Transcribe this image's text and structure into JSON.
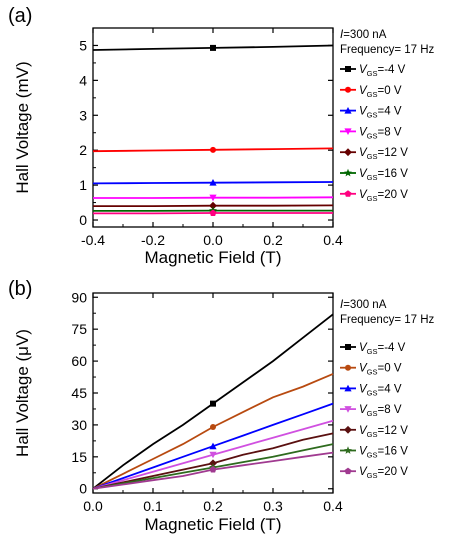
{
  "chart_data": [
    {
      "type": "line",
      "panel_label": "(a)",
      "xlabel": "Magnetic Field (T)",
      "ylabel": "Hall Voltage (mV)",
      "xlim": [
        -0.4,
        0.4
      ],
      "ylim": [
        -0.2,
        5.5
      ],
      "xticks": [
        -0.4,
        -0.2,
        0.0,
        0.2,
        0.4
      ],
      "xtick_labels": [
        "-0.4",
        "-0.2",
        "0.0",
        "0.2",
        "0.4"
      ],
      "yticks": [
        0,
        1,
        2,
        3,
        4,
        5
      ],
      "ytick_labels": [
        "0",
        "1",
        "2",
        "3",
        "4",
        "5"
      ],
      "legend_header": [
        "I=300 nA",
        "Frequency= 17 Hz"
      ],
      "legend_position": "right",
      "series": [
        {
          "name": "VGS=-4 V",
          "label_var": "V",
          "label_sub": "GS",
          "label_rest": "=-4 V",
          "color": "#000000",
          "marker": "square",
          "x": [
            -0.4,
            -0.2,
            0.0,
            0.2,
            0.4
          ],
          "y": [
            4.87,
            4.9,
            4.93,
            4.96,
            5.0
          ],
          "marker_x": 0.0,
          "marker_y": 4.93
        },
        {
          "name": "VGS=0 V",
          "label_var": "V",
          "label_sub": "GS",
          "label_rest": "=0 V",
          "color": "#ff0000",
          "marker": "circle",
          "x": [
            -0.4,
            -0.2,
            0.0,
            0.2,
            0.4
          ],
          "y": [
            1.97,
            1.99,
            2.01,
            2.03,
            2.05
          ],
          "marker_x": 0.0,
          "marker_y": 2.01
        },
        {
          "name": "VGS=4 V",
          "label_var": "V",
          "label_sub": "GS",
          "label_rest": "=4 V",
          "color": "#0000ff",
          "marker": "triangle-up",
          "x": [
            -0.4,
            -0.2,
            0.0,
            0.2,
            0.4
          ],
          "y": [
            1.05,
            1.06,
            1.07,
            1.08,
            1.09
          ],
          "marker_x": 0.0,
          "marker_y": 1.07
        },
        {
          "name": "VGS=8 V",
          "label_var": "V",
          "label_sub": "GS",
          "label_rest": "=8 V",
          "color": "#ff00ff",
          "marker": "triangle-down",
          "x": [
            -0.4,
            -0.2,
            0.0,
            0.2,
            0.4
          ],
          "y": [
            0.63,
            0.63,
            0.64,
            0.64,
            0.65
          ],
          "marker_x": 0.0,
          "marker_y": 0.64
        },
        {
          "name": "VGS=12 V",
          "label_var": "V",
          "label_sub": "GS",
          "label_rest": "=12 V",
          "color": "#660000",
          "marker": "diamond",
          "x": [
            -0.4,
            -0.2,
            0.0,
            0.2,
            0.4
          ],
          "y": [
            0.4,
            0.4,
            0.41,
            0.41,
            0.42
          ],
          "marker_x": 0.0,
          "marker_y": 0.41
        },
        {
          "name": "VGS=16 V",
          "label_var": "V",
          "label_sub": "GS",
          "label_rest": "=16 V",
          "color": "#006600",
          "marker": "star",
          "x": [
            -0.4,
            -0.2,
            0.0,
            0.2,
            0.4
          ],
          "y": [
            0.26,
            0.26,
            0.27,
            0.27,
            0.27
          ],
          "marker_x": 0.0,
          "marker_y": 0.27
        },
        {
          "name": "VGS=20 V",
          "label_var": "V",
          "label_sub": "GS",
          "label_rest": "=20 V",
          "color": "#ff0080",
          "marker": "pentagon",
          "x": [
            -0.4,
            -0.2,
            0.0,
            0.2,
            0.4
          ],
          "y": [
            0.19,
            0.19,
            0.2,
            0.2,
            0.2
          ],
          "marker_x": 0.0,
          "marker_y": 0.2
        }
      ]
    },
    {
      "type": "line",
      "panel_label": "(b)",
      "xlabel": "Magnetic Field (T)",
      "ylabel": "Hall Voltage (μV)",
      "xlim": [
        0.0,
        0.4
      ],
      "ylim": [
        -2,
        92
      ],
      "xticks": [
        0.0,
        0.1,
        0.2,
        0.3,
        0.4
      ],
      "xtick_labels": [
        "0.0",
        "0.1",
        "0.2",
        "0.3",
        "0.4"
      ],
      "yticks": [
        0,
        15,
        30,
        45,
        60,
        75,
        90
      ],
      "ytick_labels": [
        "0",
        "15",
        "30",
        "45",
        "60",
        "75",
        "90"
      ],
      "legend_header": [
        "I=300 nA",
        "Frequency= 17 Hz"
      ],
      "legend_position": "right",
      "series": [
        {
          "name": "VGS=-4 V",
          "label_var": "V",
          "label_sub": "GS",
          "label_rest": "=-4 V",
          "color": "#000000",
          "marker": "square",
          "x": [
            0.0,
            0.05,
            0.1,
            0.15,
            0.2,
            0.25,
            0.3,
            0.35,
            0.4
          ],
          "y": [
            0,
            11,
            21,
            30,
            40,
            50,
            60,
            71,
            82
          ],
          "marker_x": 0.2,
          "marker_y": 40
        },
        {
          "name": "VGS=0 V",
          "label_var": "V",
          "label_sub": "GS",
          "label_rest": "=0 V",
          "color": "#b84a10",
          "marker": "circle",
          "x": [
            0.0,
            0.05,
            0.1,
            0.15,
            0.2,
            0.25,
            0.3,
            0.35,
            0.4
          ],
          "y": [
            0,
            7,
            14,
            21,
            29,
            36,
            43,
            48,
            54
          ],
          "marker_x": 0.2,
          "marker_y": 29
        },
        {
          "name": "VGS=4 V",
          "label_var": "V",
          "label_sub": "GS",
          "label_rest": "=4 V",
          "color": "#0000ff",
          "marker": "triangle-up",
          "x": [
            0.0,
            0.05,
            0.1,
            0.15,
            0.2,
            0.25,
            0.3,
            0.35,
            0.4
          ],
          "y": [
            0,
            5,
            10,
            15,
            20,
            25,
            30,
            35,
            40
          ],
          "marker_x": 0.2,
          "marker_y": 20
        },
        {
          "name": "VGS=8 V",
          "label_var": "V",
          "label_sub": "GS",
          "label_rest": "=8 V",
          "color": "#d050e0",
          "marker": "triangle-down",
          "x": [
            0.0,
            0.05,
            0.1,
            0.15,
            0.2,
            0.25,
            0.3,
            0.35,
            0.4
          ],
          "y": [
            0,
            4,
            8,
            12,
            16,
            20,
            24,
            28,
            32
          ],
          "marker_x": 0.2,
          "marker_y": 16
        },
        {
          "name": "VGS=12 V",
          "label_var": "V",
          "label_sub": "GS",
          "label_rest": "=12 V",
          "color": "#5a1010",
          "marker": "diamond",
          "x": [
            0.0,
            0.05,
            0.1,
            0.15,
            0.2,
            0.25,
            0.3,
            0.35,
            0.4
          ],
          "y": [
            0,
            3,
            6,
            9,
            12,
            16,
            19,
            23,
            26
          ],
          "marker_x": 0.2,
          "marker_y": 12
        },
        {
          "name": "VGS=16 V",
          "label_var": "V",
          "label_sub": "GS",
          "label_rest": "=16 V",
          "color": "#2e6b1e",
          "marker": "star",
          "x": [
            0.0,
            0.05,
            0.1,
            0.15,
            0.2,
            0.25,
            0.3,
            0.35,
            0.4
          ],
          "y": [
            0,
            2.5,
            5,
            7.5,
            10,
            12.5,
            15,
            18,
            21
          ],
          "marker_x": 0.2,
          "marker_y": 10
        },
        {
          "name": "VGS=20 V",
          "label_var": "V",
          "label_sub": "GS",
          "label_rest": "=20 V",
          "color": "#a03a90",
          "marker": "pentagon",
          "x": [
            0.0,
            0.05,
            0.1,
            0.15,
            0.2,
            0.25,
            0.3,
            0.35,
            0.4
          ],
          "y": [
            0,
            2,
            4,
            6,
            9,
            11,
            13,
            15,
            17
          ],
          "marker_x": 0.2,
          "marker_y": 9
        }
      ]
    }
  ]
}
